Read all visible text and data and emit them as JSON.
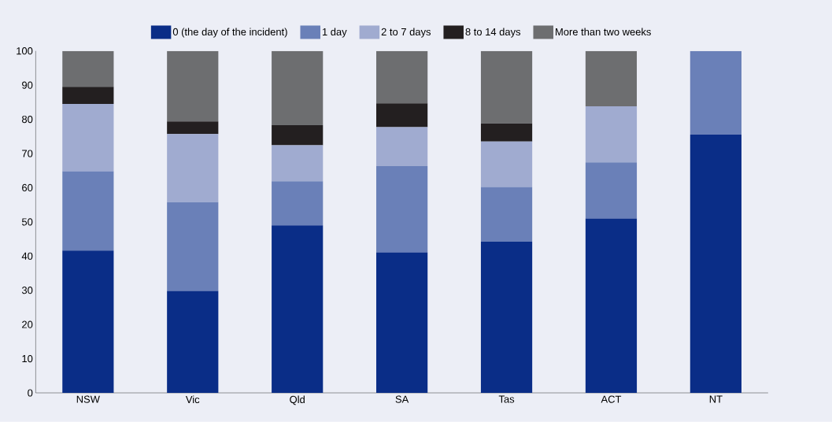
{
  "chart_data": {
    "type": "bar",
    "stacked": true,
    "legend": "top",
    "grid": false,
    "categories": [
      "NSW",
      "Vic",
      "Qld",
      "SA",
      "Tas",
      "ACT",
      "NT"
    ],
    "ylim": [
      0,
      100
    ],
    "yticks": [
      0,
      10,
      20,
      30,
      40,
      50,
      60,
      70,
      80,
      90,
      100
    ],
    "series": [
      {
        "name": "0 (the day of the incident)",
        "color": "#0a2d87",
        "values": [
          41.6,
          29.8,
          49.0,
          41.1,
          44.2,
          51.0,
          75.5
        ]
      },
      {
        "name": "1 day",
        "color": "#6a80b8",
        "values": [
          23.2,
          26.0,
          12.9,
          25.2,
          16.0,
          16.4,
          24.5
        ]
      },
      {
        "name": "2 to 7 days",
        "color": "#a0abd0",
        "values": [
          19.7,
          19.9,
          10.5,
          11.4,
          13.3,
          16.4,
          0
        ]
      },
      {
        "name": "8 to 14 days",
        "color": "#231f20",
        "values": [
          5.0,
          3.7,
          5.9,
          7.0,
          5.3,
          0,
          0
        ]
      },
      {
        "name": "More than two weeks",
        "color": "#6d6e70",
        "values": [
          10.5,
          20.6,
          21.7,
          15.3,
          21.2,
          16.2,
          0
        ]
      }
    ]
  }
}
